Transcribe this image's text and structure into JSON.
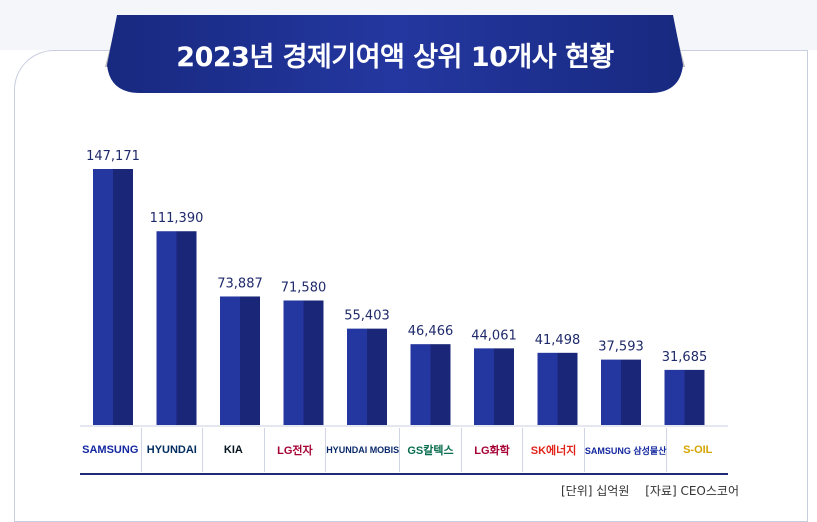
{
  "chart_data": {
    "type": "bar",
    "title": "2023년 경제기여액 상위 10개사 현황",
    "categories": [
      "SAMSUNG",
      "HYUNDAI",
      "KIA",
      "LG전자",
      "HYUNDAI MOBIS",
      "GS칼텍스",
      "LG화학",
      "SK에너지",
      "SAMSUNG 삼성물산",
      "S-OIL"
    ],
    "values": [
      147171,
      111390,
      73887,
      71580,
      55403,
      46466,
      44061,
      41498,
      37593,
      31685
    ],
    "value_labels": [
      "147,171",
      "111,390",
      "73,887",
      "71,580",
      "55,403",
      "46,466",
      "44,061",
      "41,498",
      "37,593",
      "31,685"
    ],
    "xlabel": "",
    "ylabel": "",
    "ylim": [
      0,
      147171
    ],
    "grid": false
  },
  "footer": {
    "unit": "[단위] 십억원",
    "source": "[자료] CEO스코어"
  },
  "colors": {
    "bar_light": "#24369f",
    "bar_dark": "#1a2779",
    "banner": "#1e2f8f",
    "label": "#1f2a6b"
  }
}
